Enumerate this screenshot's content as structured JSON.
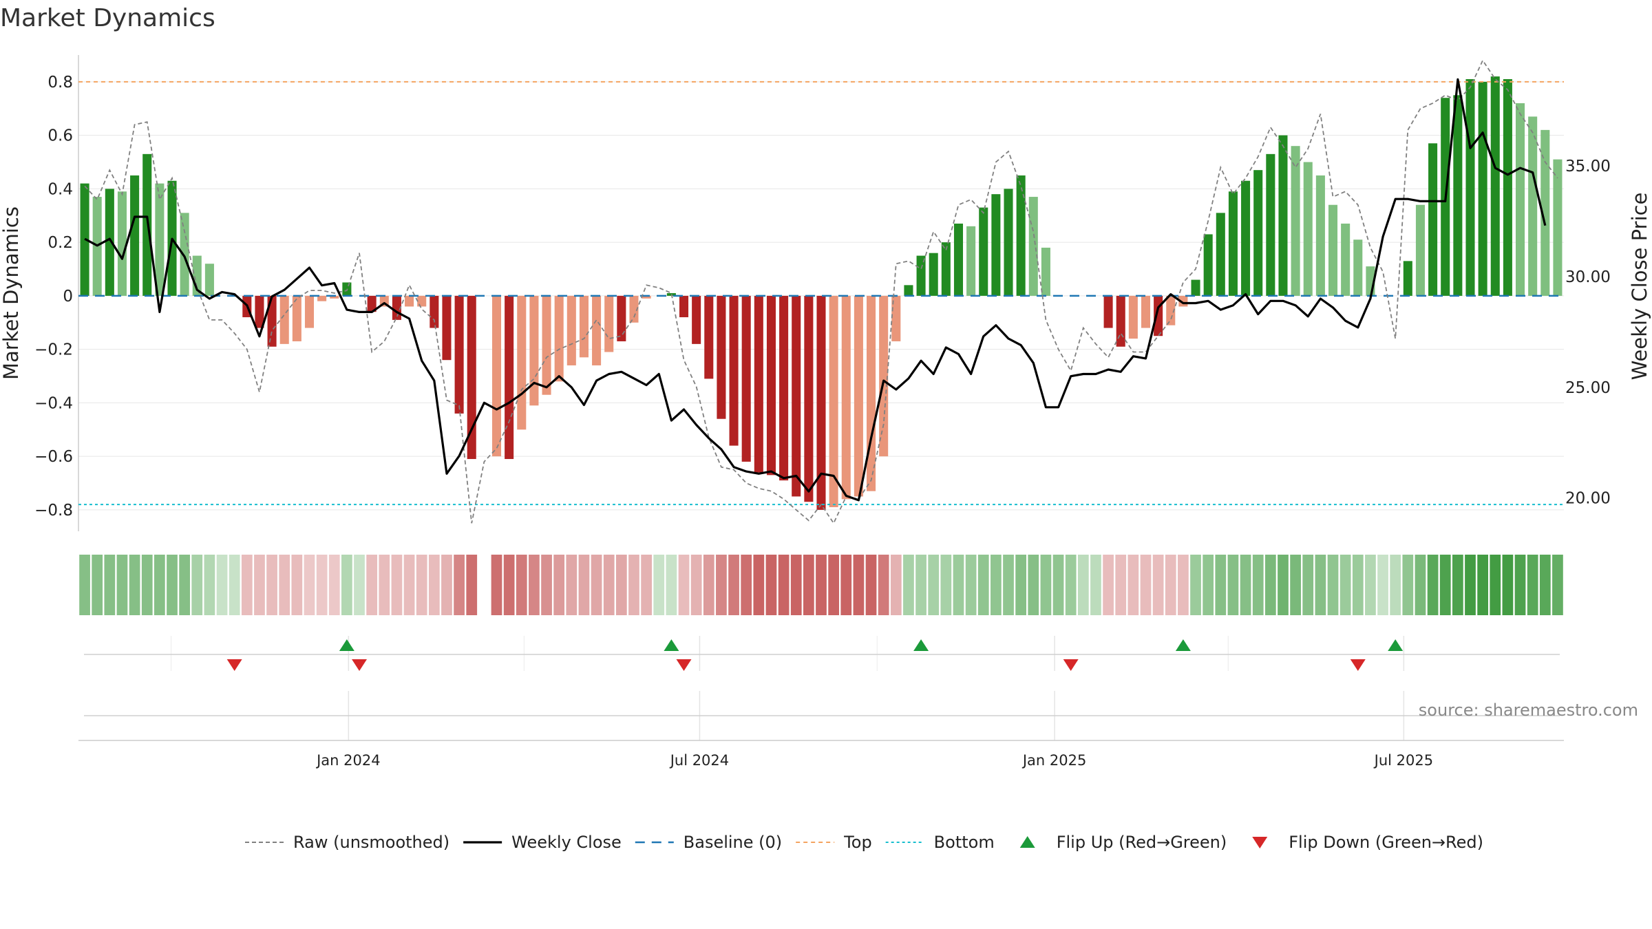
{
  "title": "Market Dynamics",
  "source": "source: sharemaestro.com",
  "colors": {
    "strong_green": "#228b22",
    "light_green": "#7fbf7f",
    "strong_red": "#b22222",
    "light_red": "#e9967a",
    "raw": "#808080",
    "close": "#000000",
    "baseline": "#1f77b4",
    "top": "#f4a460",
    "bottom": "#17becf",
    "flip_up": "#1b9a3a",
    "flip_down": "#d62728"
  },
  "chart_data": {
    "type": "bar",
    "title": "Market Dynamics",
    "ylabel": "Market Dynamics",
    "ylabel_right": "Weekly Close Price",
    "ylim": [
      -0.88,
      0.9
    ],
    "ylim_right": [
      18.5,
      40.0
    ],
    "yticks": [
      "0.8",
      "0.6",
      "0.4",
      "0.2",
      "0",
      "−0.2",
      "−0.4",
      "−0.6",
      "−0.8"
    ],
    "yticks_right": [
      "35.00",
      "30.00",
      "25.00",
      "20.00"
    ],
    "x_range": [
      "2023-08-14",
      "2025-09-22"
    ],
    "x_ticks": [
      {
        "date": "2024-01-01",
        "label": "Jan 2024"
      },
      {
        "date": "2024-07-01",
        "label": "Jul 2024"
      },
      {
        "date": "2025-01-01",
        "label": "Jan 2025"
      },
      {
        "date": "2025-07-01",
        "label": "Jul 2025"
      }
    ],
    "start_date": "2023-08-14",
    "levels": {
      "top": 0.8,
      "bottom": -0.78,
      "baseline": 0
    },
    "dynamics": [
      0.42,
      0.37,
      0.4,
      0.39,
      0.45,
      0.53,
      0.42,
      0.43,
      0.31,
      0.15,
      0.12,
      0.0,
      0.0,
      -0.08,
      -0.12,
      -0.19,
      -0.18,
      -0.17,
      -0.12,
      -0.02,
      -0.01,
      0.05,
      0.0,
      -0.06,
      -0.04,
      -0.09,
      -0.04,
      -0.04,
      -0.12,
      -0.24,
      -0.44,
      -0.61,
      0.0,
      -0.6,
      -0.61,
      -0.5,
      -0.41,
      -0.37,
      -0.32,
      -0.26,
      -0.23,
      -0.26,
      -0.21,
      -0.17,
      -0.1,
      -0.01,
      0.0,
      0.01,
      -0.08,
      -0.18,
      -0.31,
      -0.46,
      -0.56,
      -0.62,
      -0.66,
      -0.67,
      -0.69,
      -0.75,
      -0.77,
      -0.8,
      -0.79,
      -0.76,
      -0.75,
      -0.73,
      -0.6,
      -0.17,
      0.04,
      0.15,
      0.16,
      0.2,
      0.27,
      0.26,
      0.33,
      0.38,
      0.4,
      0.45,
      0.37,
      0.18,
      0.0,
      0.0,
      0.0,
      0.0,
      -0.12,
      -0.19,
      -0.16,
      -0.12,
      -0.15,
      -0.11,
      -0.04,
      0.06,
      0.23,
      0.31,
      0.39,
      0.43,
      0.47,
      0.53,
      0.6,
      0.56,
      0.5,
      0.45,
      0.34,
      0.27,
      0.21,
      0.11,
      0.0,
      0.0,
      0.13,
      0.34,
      0.57,
      0.74,
      0.75,
      0.81,
      0.8,
      0.82,
      0.81,
      0.72,
      0.67,
      0.62,
      0.51
    ],
    "strength": [
      "s",
      "l",
      "s",
      "l",
      "s",
      "s",
      "l",
      "s",
      "l",
      "l",
      "l",
      "s",
      "l",
      "s",
      "s",
      "s",
      "l",
      "l",
      "l",
      "l",
      "l",
      "s",
      "s",
      "s",
      "l",
      "s",
      "l",
      "l",
      "s",
      "s",
      "s",
      "s",
      "n",
      "l",
      "s",
      "l",
      "l",
      "l",
      "l",
      "l",
      "l",
      "l",
      "l",
      "s",
      "l",
      "l",
      "l",
      "s",
      "s",
      "s",
      "s",
      "s",
      "s",
      "s",
      "s",
      "s",
      "s",
      "s",
      "s",
      "s",
      "l",
      "l",
      "l",
      "l",
      "l",
      "l",
      "s",
      "s",
      "s",
      "s",
      "s",
      "l",
      "s",
      "s",
      "s",
      "s",
      "l",
      "l",
      "l",
      "l",
      "l",
      "l",
      "s",
      "s",
      "l",
      "l",
      "s",
      "l",
      "l",
      "s",
      "s",
      "s",
      "s",
      "s",
      "s",
      "s",
      "s",
      "l",
      "l",
      "l",
      "l",
      "l",
      "l",
      "l",
      "l",
      "l",
      "s",
      "l",
      "s",
      "s",
      "s",
      "s",
      "s",
      "s",
      "s",
      "l",
      "l",
      "l",
      "l"
    ],
    "raw": [
      0.41,
      0.36,
      0.47,
      0.38,
      0.64,
      0.65,
      0.36,
      0.44,
      0.24,
      0.03,
      -0.09,
      -0.09,
      -0.14,
      -0.2,
      -0.36,
      -0.13,
      -0.07,
      -0.01,
      0.02,
      0.02,
      0.01,
      0.02,
      0.16,
      -0.21,
      -0.17,
      -0.08,
      0.04,
      -0.05,
      -0.09,
      -0.39,
      -0.41,
      -0.85,
      -0.62,
      -0.57,
      -0.47,
      -0.35,
      -0.31,
      -0.23,
      -0.2,
      -0.18,
      -0.16,
      -0.09,
      -0.16,
      -0.15,
      -0.08,
      0.04,
      0.03,
      0.01,
      -0.24,
      -0.34,
      -0.53,
      -0.64,
      -0.65,
      -0.7,
      -0.72,
      -0.73,
      -0.76,
      -0.8,
      -0.84,
      -0.78,
      -0.85,
      -0.75,
      -0.76,
      -0.69,
      -0.48,
      0.12,
      0.13,
      0.1,
      0.24,
      0.17,
      0.34,
      0.36,
      0.31,
      0.5,
      0.54,
      0.41,
      0.24,
      -0.09,
      -0.2,
      -0.28,
      -0.12,
      -0.18,
      -0.23,
      -0.14,
      -0.21,
      -0.21,
      -0.15,
      -0.09,
      0.05,
      0.1,
      0.28,
      0.48,
      0.38,
      0.44,
      0.52,
      0.63,
      0.56,
      0.48,
      0.55,
      0.68,
      0.37,
      0.39,
      0.34,
      0.18,
      0.09,
      -0.16,
      0.62,
      0.7,
      0.72,
      0.75,
      0.73,
      0.78,
      0.88,
      0.81,
      0.77,
      0.68,
      0.61,
      0.5,
      0.44
    ],
    "close": [
      31.7,
      31.4,
      31.7,
      30.8,
      32.7,
      32.7,
      28.4,
      31.7,
      30.9,
      29.4,
      29.0,
      29.3,
      29.2,
      28.7,
      27.3,
      29.1,
      29.4,
      29.9,
      30.4,
      29.6,
      29.7,
      28.5,
      28.4,
      28.4,
      28.8,
      28.4,
      28.1,
      26.2,
      25.3,
      21.1,
      21.9,
      23.1,
      24.3,
      24.0,
      24.3,
      24.7,
      25.2,
      25.0,
      25.5,
      25.0,
      24.2,
      25.3,
      25.6,
      25.7,
      25.4,
      25.1,
      25.6,
      23.5,
      24.0,
      23.3,
      22.7,
      22.2,
      21.4,
      21.2,
      21.1,
      21.2,
      20.9,
      21.0,
      20.3,
      21.1,
      21.0,
      20.1,
      19.9,
      22.7,
      25.3,
      24.9,
      25.4,
      26.2,
      25.6,
      26.8,
      26.5,
      25.6,
      27.3,
      27.8,
      27.2,
      26.9,
      26.1,
      24.1,
      24.1,
      25.5,
      25.6,
      25.6,
      25.8,
      25.7,
      26.4,
      26.3,
      28.6,
      29.2,
      28.8,
      28.8,
      28.9,
      28.5,
      28.7,
      29.2,
      28.3,
      28.9,
      28.9,
      28.7,
      28.2,
      29.0,
      28.6,
      28.0,
      27.7,
      29.0,
      31.8,
      33.5,
      33.5,
      33.4,
      33.4,
      33.4,
      38.9,
      35.8,
      36.5,
      34.9,
      34.6,
      34.9,
      34.7,
      32.3
    ],
    "heat": [
      0.55,
      0.55,
      0.55,
      0.55,
      0.55,
      0.55,
      0.55,
      0.55,
      0.55,
      0.4,
      0.35,
      0.25,
      0.25,
      0.3,
      0.3,
      0.3,
      0.3,
      0.3,
      0.25,
      0.25,
      0.25,
      0.35,
      0.25,
      0.3,
      0.3,
      0.3,
      0.3,
      0.3,
      0.3,
      0.35,
      0.55,
      0.65,
      null,
      0.65,
      0.65,
      0.6,
      0.55,
      0.5,
      0.45,
      0.4,
      0.4,
      0.4,
      0.4,
      0.4,
      0.35,
      0.35,
      0.25,
      0.25,
      0.3,
      0.35,
      0.45,
      0.55,
      0.6,
      0.65,
      0.7,
      0.7,
      0.7,
      0.7,
      0.7,
      0.7,
      0.7,
      0.7,
      0.7,
      0.7,
      0.6,
      0.35,
      0.4,
      0.4,
      0.4,
      0.4,
      0.45,
      0.45,
      0.5,
      0.5,
      0.5,
      0.55,
      0.55,
      0.5,
      0.5,
      0.45,
      0.3,
      0.3,
      0.3,
      0.3,
      0.3,
      0.3,
      0.3,
      0.3,
      0.3,
      0.45,
      0.5,
      0.55,
      0.55,
      0.55,
      0.55,
      0.6,
      0.65,
      0.6,
      0.55,
      0.55,
      0.5,
      0.45,
      0.45,
      0.35,
      0.25,
      0.3,
      0.5,
      0.6,
      0.75,
      0.8,
      0.8,
      0.85,
      0.85,
      0.85,
      0.85,
      0.8,
      0.75,
      0.75,
      0.7
    ],
    "flip_up": [
      21,
      47,
      67,
      88,
      105
    ],
    "flip_down": [
      12,
      22,
      48,
      79,
      102
    ],
    "legend": [
      {
        "label": "Raw (unsmoothed)",
        "kind": "raw"
      },
      {
        "label": "Weekly Close",
        "kind": "close"
      },
      {
        "label": "Baseline (0)",
        "kind": "baseline"
      },
      {
        "label": "Top",
        "kind": "top"
      },
      {
        "label": "Bottom",
        "kind": "bottom"
      },
      {
        "label": "Flip Up (Red→Green)",
        "kind": "flip_up"
      },
      {
        "label": "Flip Down (Green→Red)",
        "kind": "flip_down"
      }
    ]
  }
}
